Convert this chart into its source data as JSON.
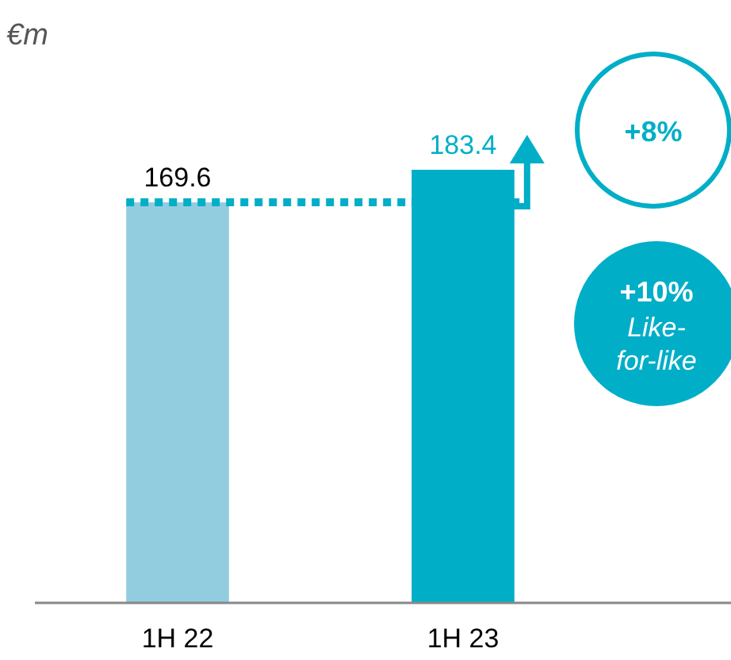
{
  "chart_data": {
    "type": "bar",
    "ylabel": "€m",
    "categories": [
      "1H 22",
      "1H 23"
    ],
    "values": [
      169.6,
      183.4
    ],
    "colors": [
      "#92cddf",
      "#00aec7"
    ],
    "data_labels": true,
    "ref_lines": [
      {
        "axis": "y",
        "value": 169.6,
        "color": "#00aec7",
        "line_style": "dotted"
      }
    ],
    "annotations": [
      "+8%",
      "+10%",
      "Like-for-like"
    ]
  }
}
